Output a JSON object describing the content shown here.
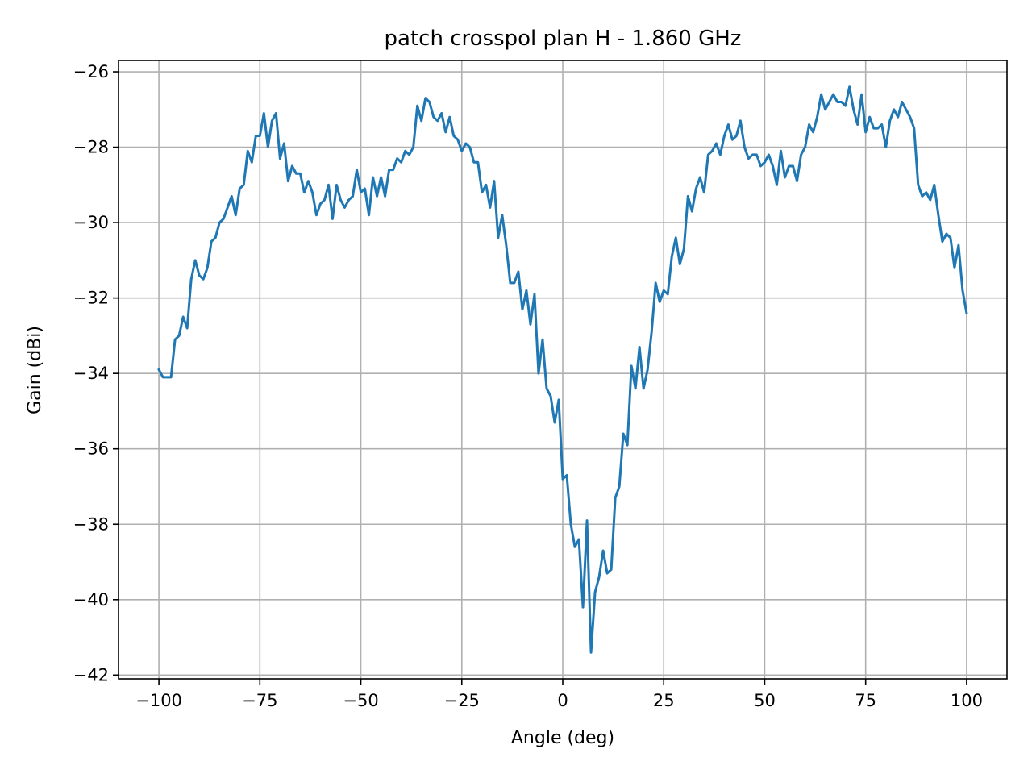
{
  "chart_data": {
    "type": "line",
    "title": "patch crosspol plan H - 1.860 GHz",
    "xlabel": "Angle (deg)",
    "ylabel": "Gain (dBi)",
    "xlim": [
      -110,
      110
    ],
    "ylim": [
      -42.1,
      -25.7
    ],
    "xticks": [
      -100,
      -75,
      -50,
      -25,
      0,
      25,
      50,
      75,
      100
    ],
    "xtick_labels": [
      "−100",
      "−75",
      "−50",
      "−25",
      "0",
      "25",
      "50",
      "75",
      "100"
    ],
    "yticks": [
      -42,
      -40,
      -38,
      -36,
      -34,
      -32,
      -30,
      -28,
      -26
    ],
    "ytick_labels": [
      "−42",
      "−40",
      "−38",
      "−36",
      "−34",
      "−32",
      "−30",
      "−28",
      "−26"
    ],
    "grid": true,
    "series": [
      {
        "color": "#1f77b4",
        "x": [
          -100,
          -99,
          -98,
          -97,
          -96,
          -95,
          -94,
          -93,
          -92,
          -91,
          -90,
          -89,
          -88,
          -87,
          -86,
          -85,
          -84,
          -83,
          -82,
          -81,
          -80,
          -79,
          -78,
          -77,
          -76,
          -75,
          -74,
          -73,
          -72,
          -71,
          -70,
          -69,
          -68,
          -67,
          -66,
          -65,
          -64,
          -63,
          -62,
          -61,
          -60,
          -59,
          -58,
          -57,
          -56,
          -55,
          -54,
          -53,
          -52,
          -51,
          -50,
          -49,
          -48,
          -47,
          -46,
          -45,
          -44,
          -43,
          -42,
          -41,
          -40,
          -39,
          -38,
          -37,
          -36,
          -35,
          -34,
          -33,
          -32,
          -31,
          -30,
          -29,
          -28,
          -27,
          -26,
          -25,
          -24,
          -23,
          -22,
          -21,
          -20,
          -19,
          -18,
          -17,
          -16,
          -15,
          -14,
          -13,
          -12,
          -11,
          -10,
          -9,
          -8,
          -7,
          -6,
          -5,
          -4,
          -3,
          -2,
          -1,
          0,
          1,
          2,
          3,
          4,
          5,
          6,
          7,
          8,
          9,
          10,
          11,
          12,
          13,
          14,
          15,
          16,
          17,
          18,
          19,
          20,
          21,
          22,
          23,
          24,
          25,
          26,
          27,
          28,
          29,
          30,
          31,
          32,
          33,
          34,
          35,
          36,
          37,
          38,
          39,
          40,
          41,
          42,
          43,
          44,
          45,
          46,
          47,
          48,
          49,
          50,
          51,
          52,
          53,
          54,
          55,
          56,
          57,
          58,
          59,
          60,
          61,
          62,
          63,
          64,
          65,
          66,
          67,
          68,
          69,
          70,
          71,
          72,
          73,
          74,
          75,
          76,
          77,
          78,
          79,
          80,
          81,
          82,
          83,
          84,
          85,
          86,
          87,
          88,
          89,
          90,
          91,
          92,
          93,
          94,
          95,
          96,
          97,
          98,
          99,
          100
        ],
        "y": [
          -33.9,
          -34.1,
          -34.1,
          -34.1,
          -33.1,
          -33.0,
          -32.5,
          -32.8,
          -31.5,
          -31.0,
          -31.4,
          -31.5,
          -31.2,
          -30.5,
          -30.4,
          -30.0,
          -29.9,
          -29.6,
          -29.3,
          -29.8,
          -29.1,
          -29.0,
          -28.1,
          -28.4,
          -27.7,
          -27.7,
          -27.1,
          -28.0,
          -27.3,
          -27.1,
          -28.3,
          -27.9,
          -28.9,
          -28.5,
          -28.7,
          -28.7,
          -29.2,
          -28.9,
          -29.2,
          -29.8,
          -29.5,
          -29.4,
          -29.0,
          -29.9,
          -29.0,
          -29.4,
          -29.6,
          -29.4,
          -29.3,
          -28.6,
          -29.2,
          -29.1,
          -29.8,
          -28.8,
          -29.3,
          -28.8,
          -29.3,
          -28.6,
          -28.6,
          -28.3,
          -28.4,
          -28.1,
          -28.2,
          -28.0,
          -26.9,
          -27.3,
          -26.7,
          -26.8,
          -27.2,
          -27.3,
          -27.1,
          -27.6,
          -27.2,
          -27.7,
          -27.8,
          -28.1,
          -27.9,
          -28.0,
          -28.4,
          -28.4,
          -29.2,
          -29.0,
          -29.6,
          -28.9,
          -30.4,
          -29.8,
          -30.6,
          -31.6,
          -31.6,
          -31.3,
          -32.3,
          -31.8,
          -32.7,
          -31.9,
          -34.0,
          -33.1,
          -34.4,
          -34.6,
          -35.3,
          -34.7,
          -36.8,
          -36.7,
          -38.0,
          -38.6,
          -38.4,
          -40.2,
          -37.9,
          -41.4,
          -39.8,
          -39.4,
          -38.7,
          -39.3,
          -39.2,
          -37.3,
          -37.0,
          -35.6,
          -35.9,
          -33.8,
          -34.4,
          -33.3,
          -34.4,
          -33.9,
          -32.9,
          -31.6,
          -32.1,
          -31.8,
          -31.9,
          -30.9,
          -30.4,
          -31.1,
          -30.7,
          -29.3,
          -29.7,
          -29.1,
          -28.8,
          -29.2,
          -28.2,
          -28.1,
          -27.9,
          -28.2,
          -27.7,
          -27.4,
          -27.8,
          -27.7,
          -27.3,
          -28.0,
          -28.3,
          -28.2,
          -28.2,
          -28.5,
          -28.4,
          -28.2,
          -28.5,
          -29.0,
          -28.1,
          -28.8,
          -28.5,
          -28.5,
          -28.9,
          -28.2,
          -28.0,
          -27.4,
          -27.6,
          -27.2,
          -26.6,
          -27.0,
          -26.8,
          -26.6,
          -26.8,
          -26.8,
          -26.9,
          -26.4,
          -27.0,
          -27.4,
          -26.6,
          -27.6,
          -27.2,
          -27.5,
          -27.5,
          -27.4,
          -28.0,
          -27.3,
          -27.0,
          -27.2,
          -26.8,
          -27.0,
          -27.2,
          -27.5,
          -29.0,
          -29.3,
          -29.2,
          -29.4,
          -29.0,
          -29.8,
          -30.5,
          -30.3,
          -30.4,
          -31.2,
          -30.6,
          -31.8,
          -32.4
        ]
      }
    ]
  }
}
